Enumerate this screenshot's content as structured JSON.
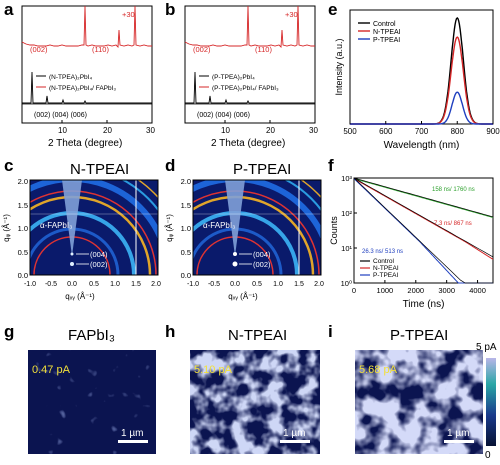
{
  "labels": {
    "a": "a",
    "b": "b",
    "c": "c",
    "d": "d",
    "e": "e",
    "f": "f",
    "g": "g",
    "h": "h",
    "i": "i"
  },
  "panel_a": {
    "peak_002": "(002)",
    "peak_110": "(110)",
    "plus30": "+30",
    "legend": [
      "(N-TPEA)₂PbI₄",
      "(N-TPEA)₂PbI₄/ FAPbI₃"
    ],
    "ref_peaks": "(002) (004) (006)",
    "xlabel": "2 Theta (degree)",
    "xticks": [
      "10",
      "20",
      "30"
    ]
  },
  "panel_b": {
    "peak_002": "(002)",
    "peak_110": "(110)",
    "plus30": "+30",
    "legend": [
      "(P-TPEA)₂PbI₄",
      "(P-TPEA)₂PbI₄/ FAPbI₃"
    ],
    "ref_peaks": "(002) (004) (006)",
    "xlabel": "2 Theta (degree)",
    "xticks": [
      "10",
      "20",
      "30"
    ]
  },
  "panel_c": {
    "title": "N-TPEAI",
    "phase": "α-FAPbI₃",
    "p004": "(004)",
    "p002": "(002)"
  },
  "panel_d": {
    "title": "P-TPEAI",
    "phase": "α-FAPbI₃",
    "p004": "(004)",
    "p002": "(002)"
  },
  "giwaxs_axes": {
    "ylabel": "qᵩ (Å⁻¹)",
    "xlabel": "qₓᵧ (Å⁻¹)",
    "yticks": [
      "0.0",
      "0.5",
      "1.0",
      "1.5",
      "2.0"
    ],
    "xticks": [
      "-1.0",
      "-0.5",
      "0.0",
      "0.5",
      "1.0",
      "1.5",
      "2.0"
    ]
  },
  "panel_e": {
    "ylabel": "Intensity (a.u.)",
    "xlabel": "Wavelength (nm)"
  },
  "panel_f": {
    "ylabel": "Counts",
    "xlabel": "Time (ns)",
    "ann_green": "158 ns/ 1760 ns",
    "ann_red": "7.3 ns/ 867 ns",
    "ann_blue": "26.3 ns/ 513 ns"
  },
  "panel_g": {
    "title": "FAPbI₃",
    "current": "0.47 pA",
    "scale": "1 µm"
  },
  "panel_h": {
    "title": "N-TPEAI",
    "current": "5.10 pA",
    "scale": "1 µm"
  },
  "panel_i": {
    "title": "P-TPEAI",
    "current": "5.68 pA",
    "scale": "1 µm"
  },
  "colorbar": {
    "max": "5 pA",
    "min": "0"
  },
  "colors": {
    "control": "#000000",
    "n_tpeai": "#d62728",
    "p_tpeai": "#1f3fbf",
    "pl_green": "#2ca02c"
  },
  "chart_data": [
    {
      "type": "line",
      "panel": "e",
      "xlabel": "Wavelength (nm)",
      "ylabel": "Intensity (a.u.)",
      "xlim": [
        500,
        900
      ],
      "xticks": [
        500,
        600,
        700,
        800,
        900
      ],
      "series": [
        {
          "name": "Control",
          "peak_x": 800,
          "peak_y": 1.0,
          "fwhm": 40
        },
        {
          "name": "N-TPEAI",
          "peak_x": 800,
          "peak_y": 0.82,
          "fwhm": 40
        },
        {
          "name": "P-TPEAI",
          "peak_x": 800,
          "peak_y": 0.3,
          "fwhm": 34
        }
      ]
    },
    {
      "type": "line",
      "panel": "f",
      "xlabel": "Time (ns)",
      "ylabel": "Counts",
      "xlim": [
        0,
        4500
      ],
      "ylim_log10": [
        0,
        3
      ],
      "xticks": [
        0,
        1000,
        2000,
        3000,
        4000
      ],
      "yticks": [
        "10⁰",
        "10¹",
        "10²",
        "10³"
      ],
      "series": [
        {
          "name": "Control",
          "tau1_ns": 158,
          "tau2_ns": 1760
        },
        {
          "name": "N-TPEAI",
          "tau1_ns": 7.3,
          "tau2_ns": 867
        },
        {
          "name": "P-TPEAI",
          "tau1_ns": 26.3,
          "tau2_ns": 513
        }
      ]
    }
  ]
}
